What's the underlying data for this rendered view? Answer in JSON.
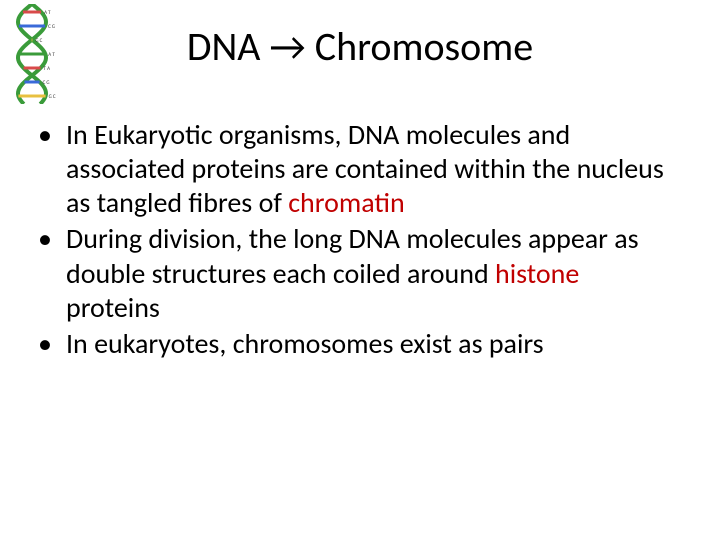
{
  "title": "DNA → Chromosome",
  "title_fontsize": 40,
  "title_color": "#000000",
  "body_fontsize": 28,
  "body_color": "#000000",
  "highlight_color": "#c00000",
  "background_color": "#ffffff",
  "dna_icon": {
    "helix_color": "#3a9b3a",
    "rung_colors": [
      "#d94a4a",
      "#3a6ad9",
      "#e8c040",
      "#3a9b3a"
    ],
    "label_color": "#333333",
    "labels": [
      "A T",
      "C G",
      "G C",
      "A T",
      "T A",
      "C G",
      "G C"
    ]
  },
  "bullets": [
    {
      "segments": [
        {
          "text": "In Eukaryotic organisms, DNA molecules and associated proteins are contained within the nucleus as tangled fibres of ",
          "highlight": false
        },
        {
          "text": "chromatin",
          "highlight": true
        }
      ]
    },
    {
      "segments": [
        {
          "text": "During division, the long DNA molecules appear as double structures each coiled around ",
          "highlight": false
        },
        {
          "text": "histone",
          "highlight": true
        },
        {
          "text": " proteins",
          "highlight": false
        }
      ]
    },
    {
      "segments": [
        {
          "text": "In eukaryotes, chromosomes exist as pairs",
          "highlight": false
        }
      ]
    }
  ]
}
